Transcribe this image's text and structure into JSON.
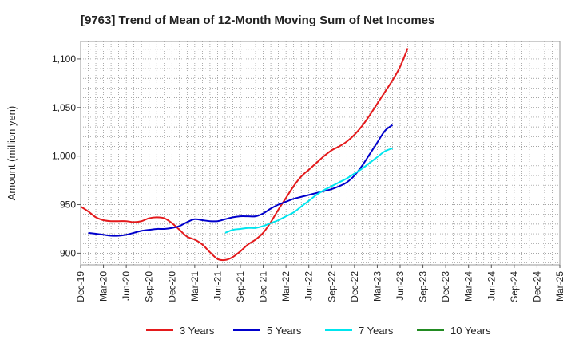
{
  "chart_data": {
    "type": "line",
    "title": "[9763]  Trend of Mean of 12-Month Moving Sum of Net Incomes",
    "xlabel": "",
    "ylabel": "Amount (million yen)",
    "ylim": [
      888,
      1118
    ],
    "yticks": [
      900,
      950,
      1000,
      1050,
      1100
    ],
    "ytick_labels": [
      "900",
      "950",
      "1,000",
      "1,050",
      "1,100"
    ],
    "xticks": [
      "Dec-19",
      "Mar-20",
      "Jun-20",
      "Sep-20",
      "Dec-20",
      "Mar-21",
      "Jun-21",
      "Sep-21",
      "Dec-21",
      "Mar-22",
      "Jun-22",
      "Sep-22",
      "Dec-22",
      "Mar-23",
      "Jun-23",
      "Sep-23",
      "Dec-23",
      "Mar-24",
      "Jun-24",
      "Sep-24",
      "Dec-24",
      "Mar-25"
    ],
    "grid": true,
    "legend_position": "bottom",
    "series": [
      {
        "name": "3 Years",
        "color": "#e41a1c",
        "values": [
          948,
          943,
          937,
          934,
          933,
          933,
          933,
          932,
          933,
          936,
          937,
          936,
          931,
          924,
          917,
          914,
          909,
          901,
          894,
          893,
          896,
          902,
          909,
          914,
          921,
          932,
          945,
          957,
          969,
          979,
          986,
          993,
          1000,
          1006,
          1010,
          1015,
          1022,
          1031,
          1042,
          1054,
          1066,
          1078,
          1092,
          1111
        ]
      },
      {
        "name": "5 Years",
        "color": "#0000cc",
        "values": [
          null,
          921,
          920,
          919,
          918,
          918,
          919,
          921,
          923,
          924,
          925,
          925,
          926,
          928,
          932,
          935,
          934,
          933,
          933,
          935,
          937,
          938,
          938,
          938,
          941,
          946,
          950,
          953,
          956,
          958,
          960,
          962,
          964,
          966,
          969,
          973,
          980,
          990,
          1002,
          1014,
          1026,
          1032
        ]
      },
      {
        "name": "7 Years",
        "color": "#00e5ee",
        "values": [
          null,
          null,
          null,
          null,
          null,
          null,
          null,
          null,
          null,
          null,
          null,
          null,
          null,
          null,
          null,
          null,
          null,
          null,
          null,
          921,
          924,
          925,
          926,
          926,
          928,
          931,
          934,
          938,
          942,
          948,
          954,
          960,
          965,
          969,
          973,
          977,
          982,
          987,
          993,
          999,
          1005,
          1008
        ]
      },
      {
        "name": "10 Years",
        "color": "#228b22",
        "values": []
      }
    ]
  }
}
